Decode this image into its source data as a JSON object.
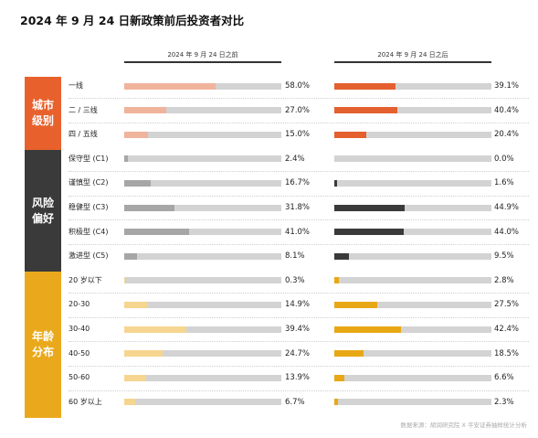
{
  "title": "2024 年 9 月 24 日新政策前后投资者对比",
  "source": "数据来源：胡润研究院 X 平安证券抽样统计分析",
  "colors": {
    "city_before": "#f0b49c",
    "city_after": "#e4602f",
    "risk_before": "#a6a6a6",
    "risk_after": "#3a3a3a",
    "age_before": "#f6d590",
    "age_after": "#e8a815",
    "track": "#d3d3d3",
    "city_box": "#e8612d",
    "risk_box": "#3a3a3a",
    "age_box": "#eaa91c"
  },
  "chart_data": {
    "type": "bar",
    "orientation": "horizontal",
    "title": "2024 年 9 月 24 日新政策前后投资者对比",
    "xlim": [
      0,
      100
    ],
    "columns": [
      "2024 年 9 月 24 日之前",
      "2024 年 9 月 24 日之后"
    ],
    "groups": [
      {
        "name": "城市\n级别",
        "color_key": "city",
        "categories": [
          "一线",
          "二 / 三线",
          "四 / 五线"
        ],
        "series": [
          {
            "name": "2024 年 9 月 24 日之前",
            "values": [
              58.0,
              27.0,
              15.0
            ],
            "labels": [
              "58.0%",
              "27.0%",
              "15.0%"
            ]
          },
          {
            "name": "2024 年 9 月 24 日之后",
            "values": [
              39.1,
              40.4,
              20.4
            ],
            "labels": [
              "39.1%",
              "40.4%",
              "20.4%"
            ]
          }
        ]
      },
      {
        "name": "风险\n偏好",
        "color_key": "risk",
        "categories": [
          "保守型 (C1)",
          "谨慎型 (C2)",
          "稳健型 (C3)",
          "积极型 (C4)",
          "激进型 (C5)"
        ],
        "series": [
          {
            "name": "2024 年 9 月 24 日之前",
            "values": [
              2.4,
              16.7,
              31.8,
              41.0,
              8.1
            ],
            "labels": [
              "2.4%",
              "16.7%",
              "31.8%",
              "41.0%",
              "8.1%"
            ]
          },
          {
            "name": "2024 年 9 月 24 日之后",
            "values": [
              0.0,
              1.6,
              44.9,
              44.0,
              9.5
            ],
            "labels": [
              "0.0%",
              "1.6%",
              "44.9%",
              "44.0%",
              "9.5%"
            ]
          }
        ]
      },
      {
        "name": "年龄\n分布",
        "color_key": "age",
        "categories": [
          "20 岁以下",
          "20-30",
          "30-40",
          "40-50",
          "50-60",
          "60 岁以上"
        ],
        "series": [
          {
            "name": "2024 年 9 月 24 日之前",
            "values": [
              0.3,
              14.9,
              39.4,
              24.7,
              13.9,
              6.7
            ],
            "labels": [
              "0.3%",
              "14.9%",
              "39.4%",
              "24.7%",
              "13.9%",
              "6.7%"
            ]
          },
          {
            "name": "2024 年 9 月 24 日之后",
            "values": [
              2.8,
              27.5,
              42.4,
              18.5,
              6.6,
              2.3
            ],
            "labels": [
              "2.8%",
              "27.5%",
              "42.4%",
              "18.5%",
              "6.6%",
              "2.3%"
            ]
          }
        ]
      }
    ]
  }
}
